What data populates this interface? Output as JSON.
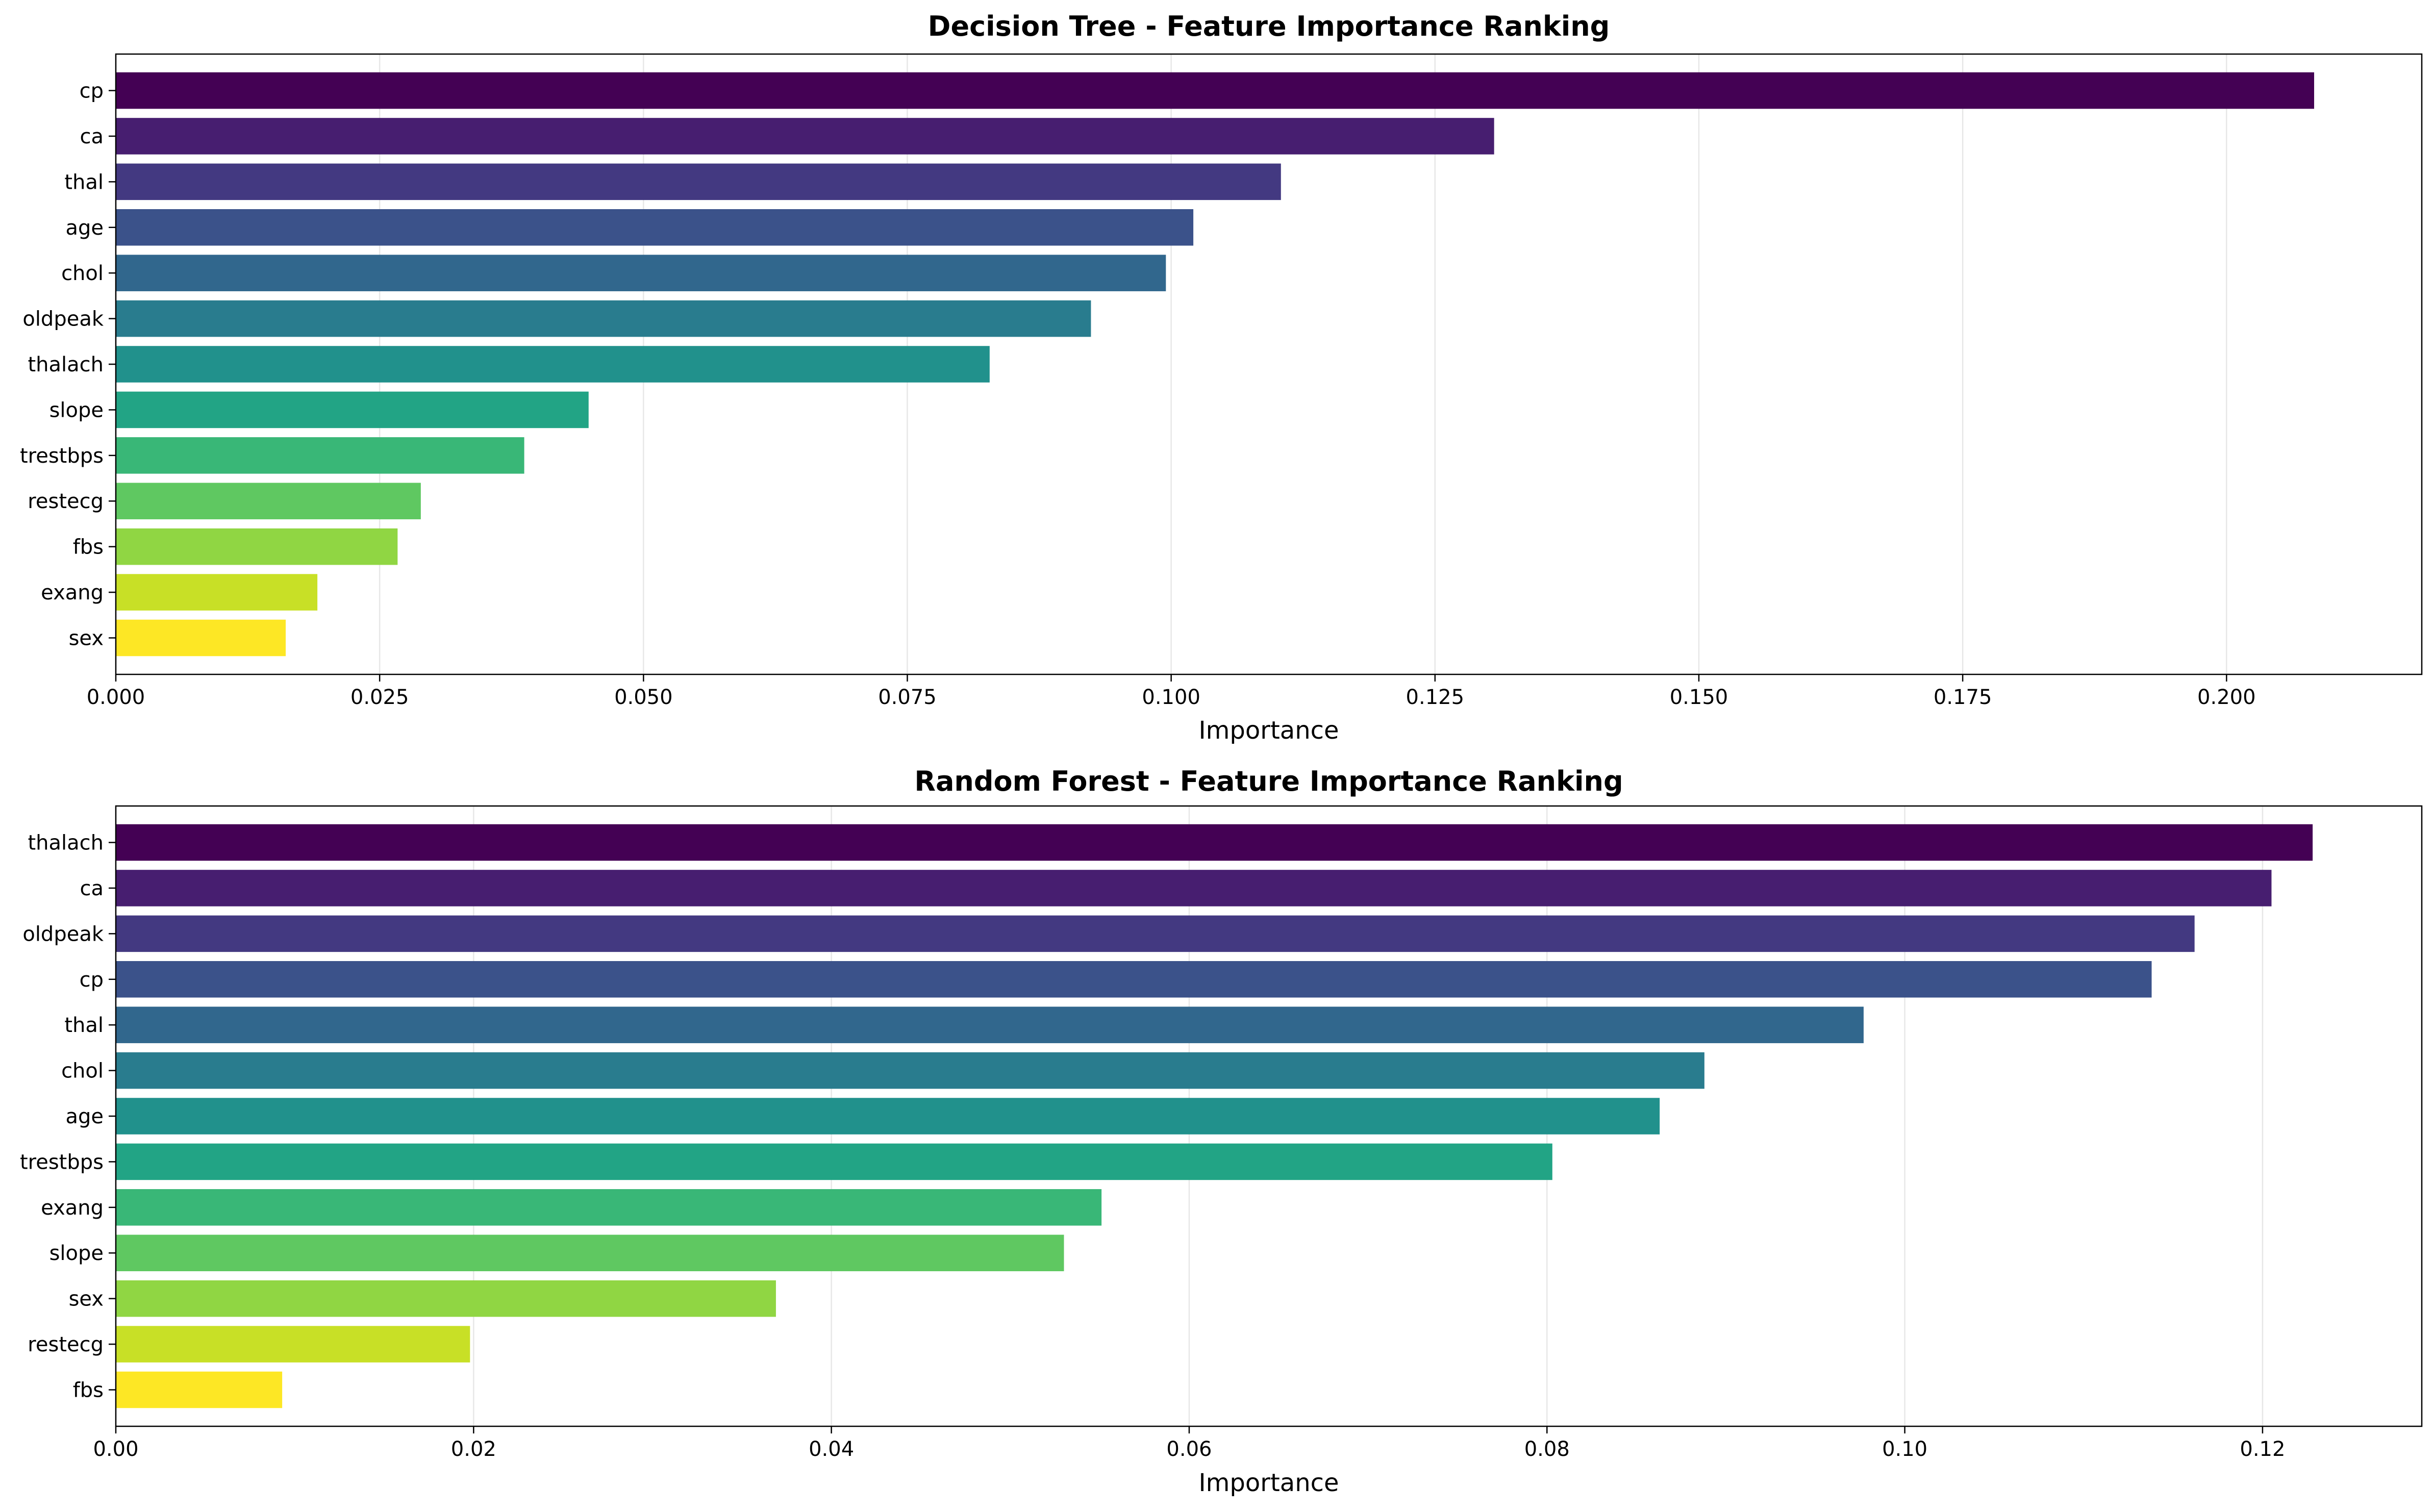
{
  "chart_data": [
    {
      "type": "bar",
      "orientation": "horizontal",
      "title": "Decision Tree - Feature Importance Ranking",
      "xlabel": "Importance",
      "ylabel": "",
      "xlim": [
        0,
        0.2185
      ],
      "xticks": [
        "0.000",
        "0.025",
        "0.050",
        "0.075",
        "0.100",
        "0.125",
        "0.150",
        "0.175",
        "0.200"
      ],
      "grid": "vertical",
      "colormap": "viridis",
      "categories": [
        "cp",
        "ca",
        "thal",
        "age",
        "chol",
        "oldpeak",
        "thalach",
        "slope",
        "trestbps",
        "restecg",
        "fbs",
        "exang",
        "sex"
      ],
      "values": [
        0.2083,
        0.1306,
        0.1104,
        0.1021,
        0.0995,
        0.0924,
        0.0828,
        0.0448,
        0.0387,
        0.0289,
        0.0267,
        0.0191,
        0.0161
      ],
      "colors": [
        "#440154",
        "#482475",
        "#414487",
        "#355f8d",
        "#2a788e",
        "#21918c",
        "#22a884",
        "#44bf70",
        "#7ad151",
        "#bddf26",
        "#fde725"
      ]
    },
    {
      "type": "bar",
      "orientation": "horizontal",
      "title": "Random Forest - Feature Importance Ranking",
      "xlabel": "Importance",
      "ylabel": "",
      "xlim": [
        0,
        0.1289
      ],
      "xticks": [
        "0.00",
        "0.02",
        "0.04",
        "0.06",
        "0.08",
        "0.10",
        "0.12"
      ],
      "grid": "vertical",
      "colormap": "viridis",
      "categories": [
        "thalach",
        "ca",
        "oldpeak",
        "cp",
        "thal",
        "chol",
        "age",
        "trestbps",
        "exang",
        "slope",
        "sex",
        "restecg",
        "fbs"
      ],
      "values": [
        0.1228,
        0.1205,
        0.1162,
        0.1138,
        0.0977,
        0.0888,
        0.0863,
        0.0803,
        0.0551,
        0.053,
        0.0369,
        0.0198,
        0.0093
      ]
    }
  ]
}
